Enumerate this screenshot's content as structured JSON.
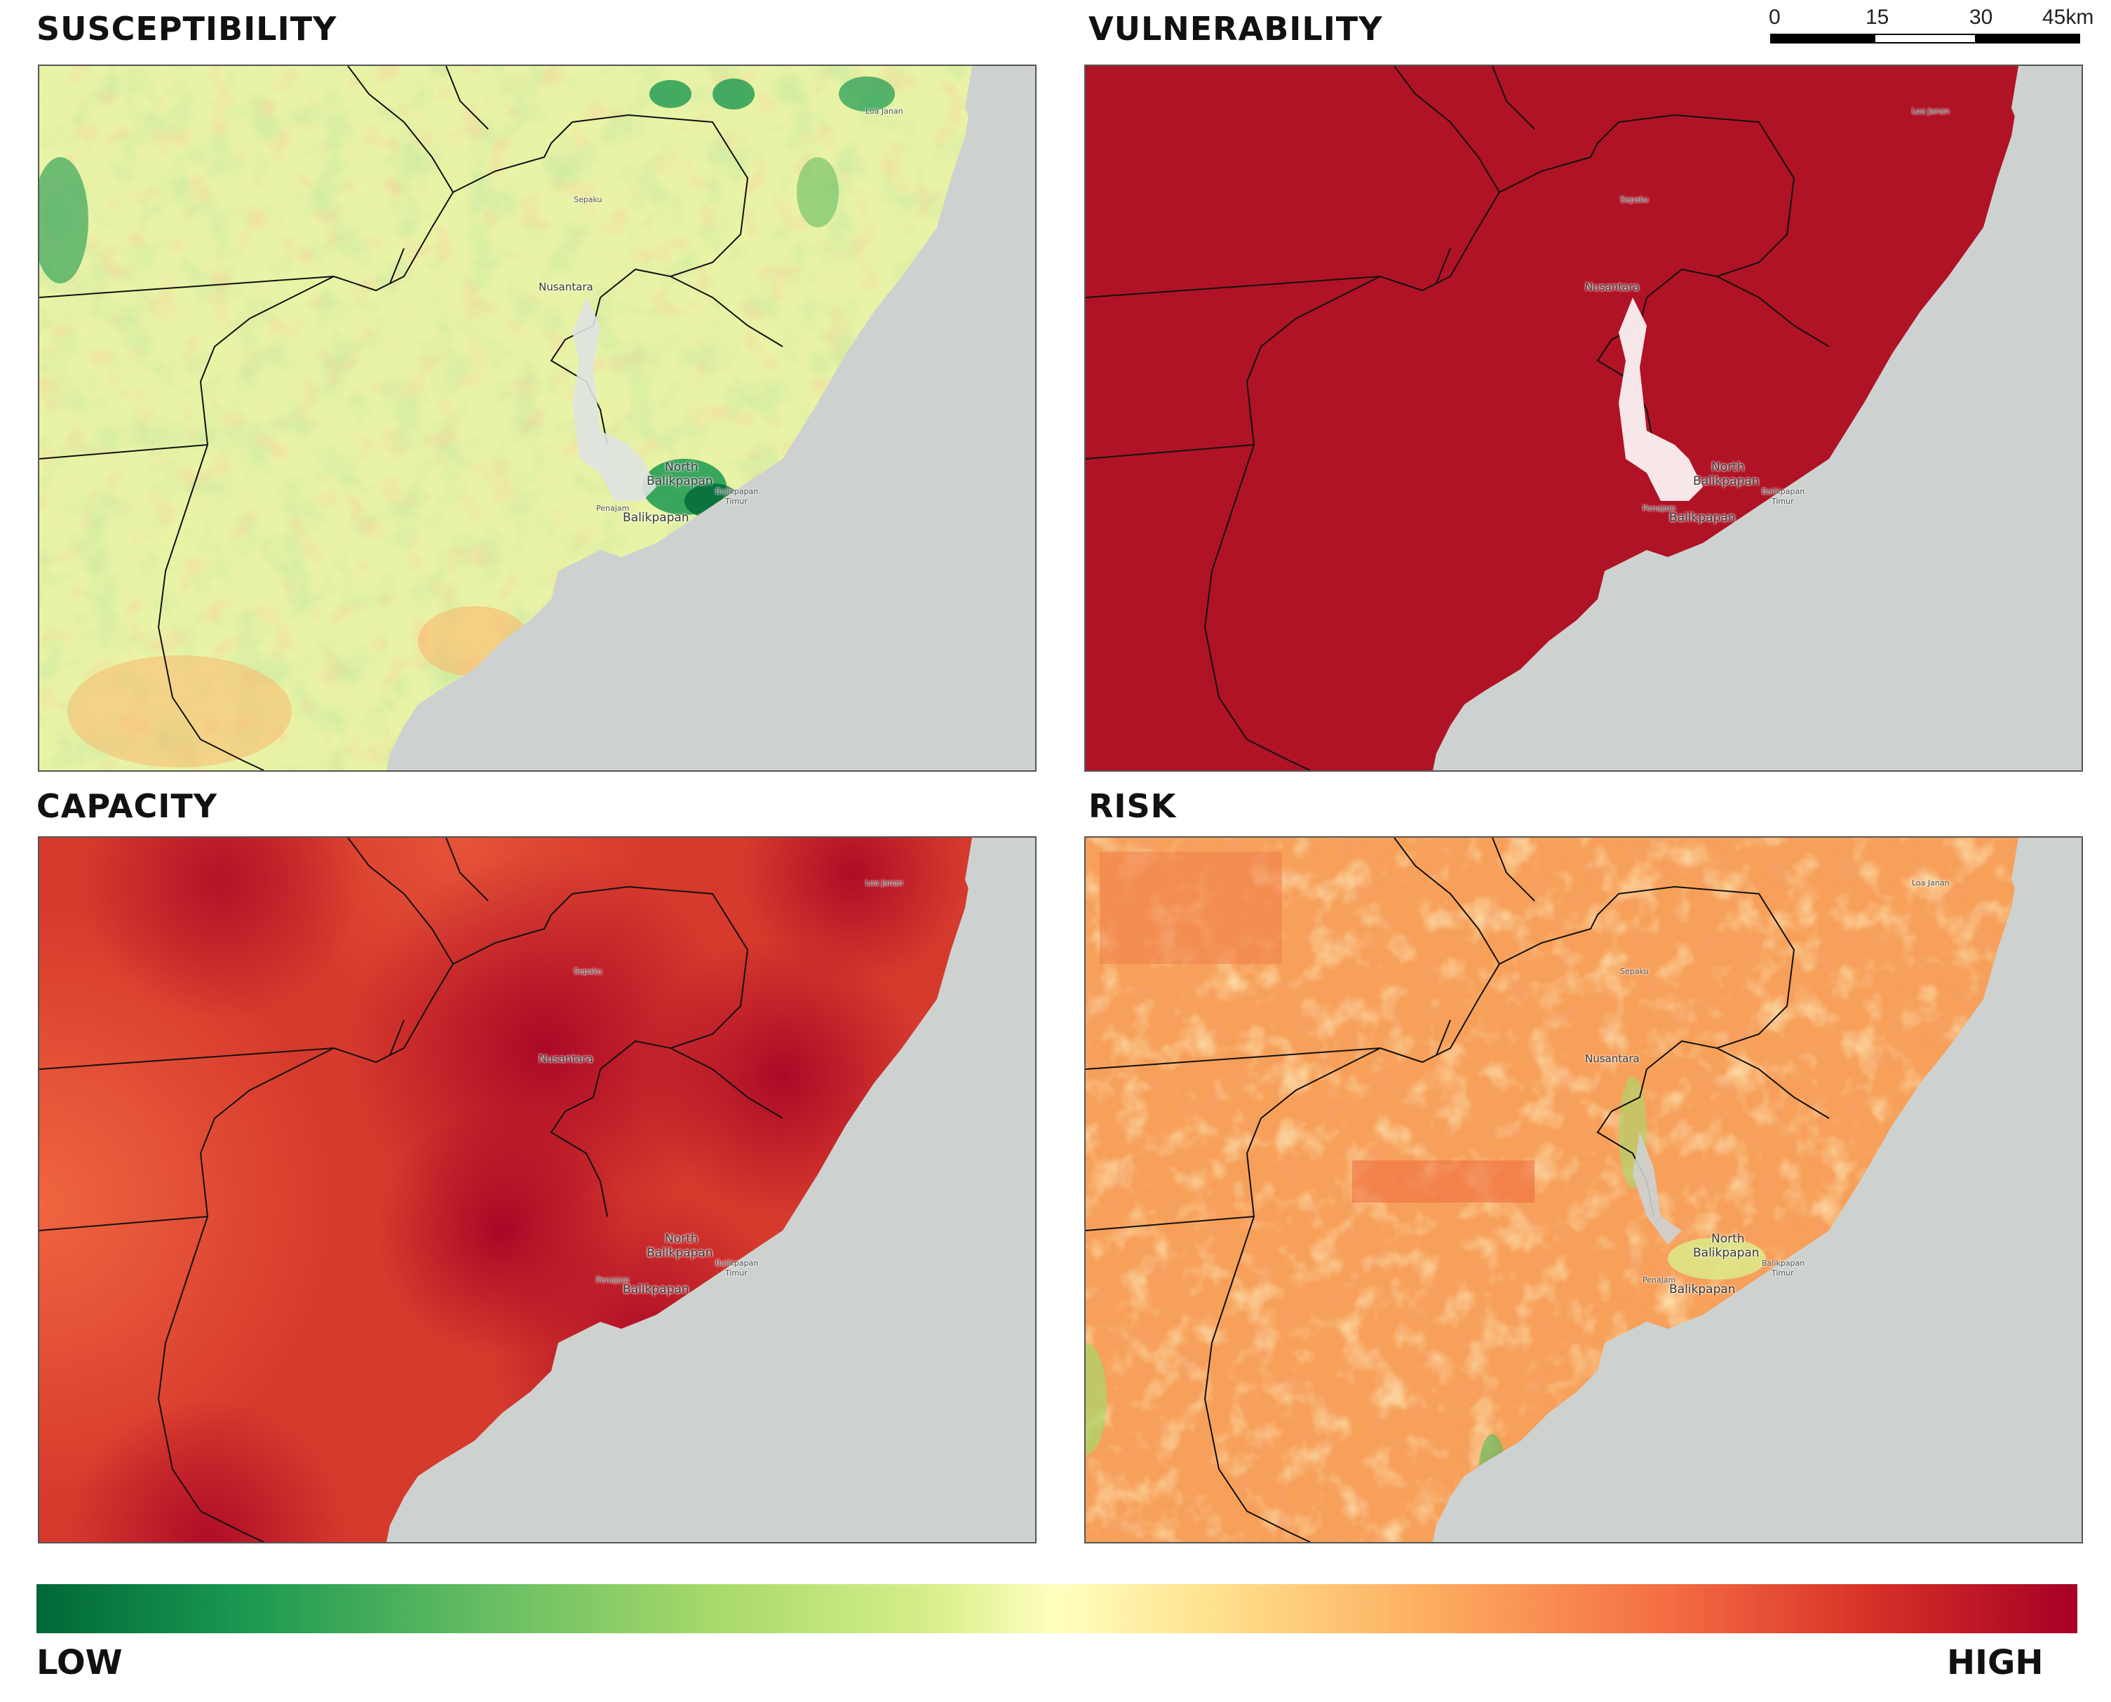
{
  "panels": {
    "susceptibility": {
      "title": "SUSCEPTIBILITY",
      "level": "mixed low-to-moderate"
    },
    "vulnerability": {
      "title": "VULNERABILITY",
      "level": "uniformly high"
    },
    "capacity": {
      "title": "CAPACITY",
      "level": "high"
    },
    "risk": {
      "title": "RISK",
      "level": "moderate-to-high"
    }
  },
  "places": {
    "loa_janan": "Loa Janan",
    "sepaku": "Sepaku",
    "nusantara": "Nusantara",
    "north_balikpapan_1": "North",
    "north_balikpapan_2": "Balikpapan",
    "balikpapan_timur_1": "Balikpapan",
    "balikpapan_timur_2": "Timur",
    "penajam": "Penajam",
    "balikpapan": "Balikpapan"
  },
  "scale_bar": {
    "ticks": [
      "0",
      "15",
      "30",
      "45km"
    ]
  },
  "legend": {
    "low_label": "LOW",
    "high_label": "HIGH",
    "colors": [
      "#006837",
      "#1a9850",
      "#66bd63",
      "#a6d96a",
      "#d9ef8b",
      "#ffffbf",
      "#fee08b",
      "#fdae61",
      "#f46d43",
      "#d73027",
      "#a50026"
    ]
  },
  "colors": {
    "sea": "#cdd2d1",
    "boundary": "#111111",
    "vulnerability_fill": "#b01325"
  }
}
